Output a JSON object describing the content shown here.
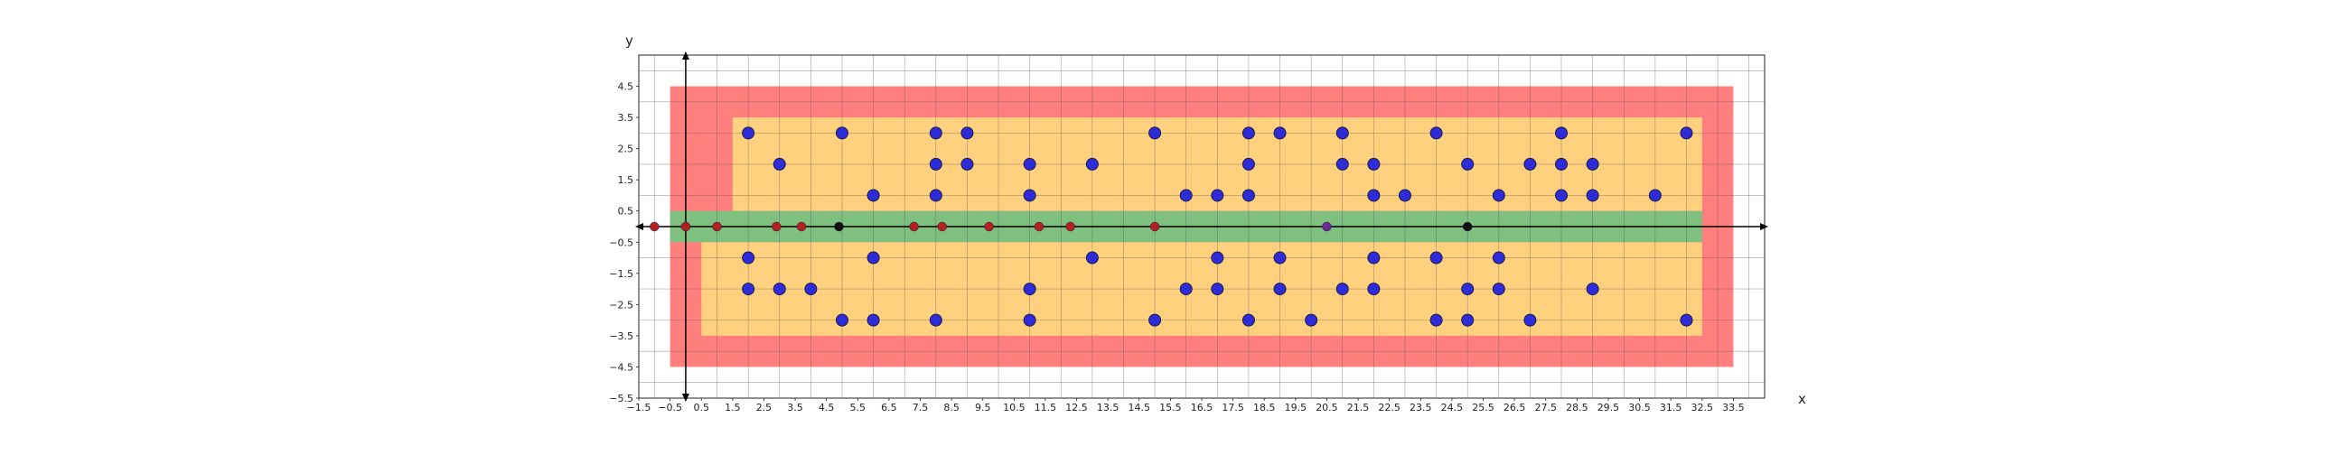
{
  "chart_data": {
    "type": "scatter",
    "xlabel": "x",
    "ylabel": "y",
    "xlim": [
      -1.5,
      34.5
    ],
    "ylim": [
      -5.5,
      5.5
    ],
    "grid": true,
    "xticks": [
      "−1.5",
      "−0.5",
      "0.5",
      "1.5",
      "2.5",
      "3.5",
      "4.5",
      "5.5",
      "6.5",
      "7.5",
      "8.5",
      "9.5",
      "10.5",
      "11.5",
      "12.5",
      "13.5",
      "14.5",
      "15.5",
      "16.5",
      "17.5",
      "18.5",
      "19.5",
      "20.5",
      "21.5",
      "22.5",
      "23.5",
      "24.5",
      "25.5",
      "26.5",
      "27.5",
      "28.5",
      "29.5",
      "30.5",
      "31.5",
      "32.5",
      "33.5"
    ],
    "yticks": [
      "4.5",
      "3.5",
      "2.5",
      "1.5",
      "0.5",
      "−0.5",
      "−1.5",
      "−2.5",
      "−3.5",
      "−4.5",
      "−5.5"
    ],
    "regions": [
      {
        "color": "#ff7f7f",
        "rects": [
          [
            -0.5,
            -4.5,
            33.5,
            4.5
          ]
        ]
      },
      {
        "color": "#ffd17f",
        "rects": [
          [
            1.5,
            0.5,
            32.5,
            3.5
          ],
          [
            0.5,
            -3.5,
            32.5,
            -0.5
          ]
        ]
      },
      {
        "color": "#7fbf7f",
        "rects": [
          [
            -0.5,
            -0.5,
            32.5,
            0.5
          ]
        ]
      }
    ],
    "series": [
      {
        "color": "#2e2bd9",
        "points": [
          [
            2,
            3
          ],
          [
            5,
            3
          ],
          [
            8,
            3
          ],
          [
            9,
            3
          ],
          [
            15,
            3
          ],
          [
            18,
            3
          ],
          [
            19,
            3
          ],
          [
            21,
            3
          ],
          [
            24,
            3
          ],
          [
            28,
            3
          ],
          [
            32,
            3
          ],
          [
            3,
            2
          ],
          [
            8,
            2
          ],
          [
            9,
            2
          ],
          [
            11,
            2
          ],
          [
            13,
            2
          ],
          [
            18,
            2
          ],
          [
            21,
            2
          ],
          [
            22,
            2
          ],
          [
            25,
            2
          ],
          [
            27,
            2
          ],
          [
            28,
            2
          ],
          [
            29,
            2
          ],
          [
            6,
            1
          ],
          [
            8,
            1
          ],
          [
            11,
            1
          ],
          [
            16,
            1
          ],
          [
            17,
            1
          ],
          [
            18,
            1
          ],
          [
            22,
            1
          ],
          [
            23,
            1
          ],
          [
            26,
            1
          ],
          [
            28,
            1
          ],
          [
            29,
            1
          ],
          [
            31,
            1
          ],
          [
            2,
            -1
          ],
          [
            6,
            -1
          ],
          [
            13,
            -1
          ],
          [
            17,
            -1
          ],
          [
            19,
            -1
          ],
          [
            22,
            -1
          ],
          [
            24,
            -1
          ],
          [
            26,
            -1
          ],
          [
            2,
            -2
          ],
          [
            3,
            -2
          ],
          [
            4,
            -2
          ],
          [
            11,
            -2
          ],
          [
            16,
            -2
          ],
          [
            17,
            -2
          ],
          [
            19,
            -2
          ],
          [
            21,
            -2
          ],
          [
            22,
            -2
          ],
          [
            25,
            -2
          ],
          [
            26,
            -2
          ],
          [
            29,
            -2
          ],
          [
            5,
            -3
          ],
          [
            6,
            -3
          ],
          [
            8,
            -3
          ],
          [
            11,
            -3
          ],
          [
            15,
            -3
          ],
          [
            18,
            -3
          ],
          [
            20,
            -3
          ],
          [
            24,
            -3
          ],
          [
            25,
            -3
          ],
          [
            27,
            -3
          ],
          [
            32,
            -3
          ]
        ]
      },
      {
        "color": "#b52020",
        "points": [
          [
            -1,
            0
          ],
          [
            0,
            0
          ],
          [
            1,
            0
          ],
          [
            2.9,
            0
          ],
          [
            3.7,
            0
          ],
          [
            7.3,
            0
          ],
          [
            8.2,
            0
          ],
          [
            9.7,
            0
          ],
          [
            11.3,
            0
          ],
          [
            12.3,
            0
          ],
          [
            15,
            0
          ]
        ]
      },
      {
        "color": "#6a2a8f",
        "points": [
          [
            20.5,
            0
          ]
        ]
      },
      {
        "color": "#111111",
        "points": [
          [
            4.9,
            0
          ],
          [
            25,
            0
          ]
        ]
      }
    ]
  }
}
